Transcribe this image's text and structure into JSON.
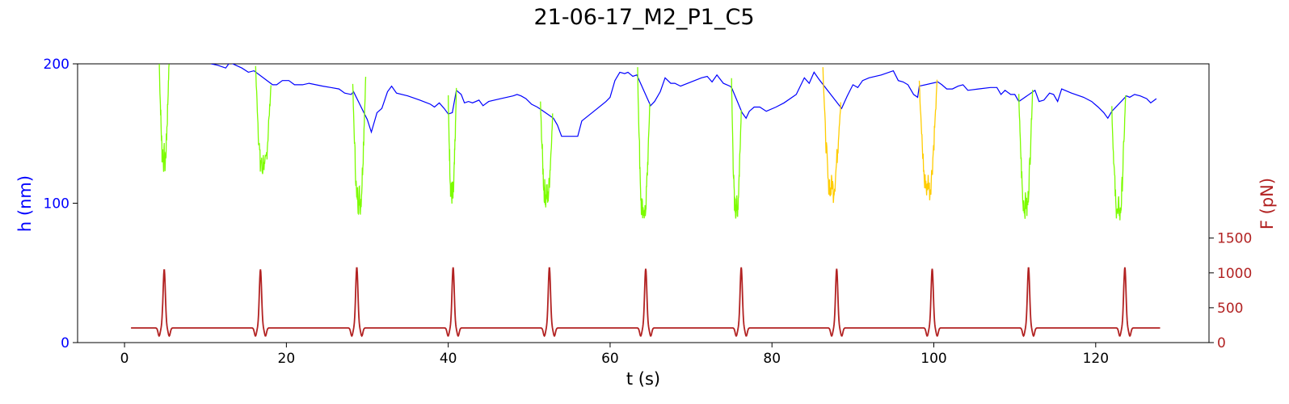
{
  "chart_data": {
    "type": "line",
    "title": "21-06-17_M2_P1_C5",
    "xlabel": "t (s)",
    "ylabel_left": "h (nm)",
    "ylabel_right": "F (pN)",
    "xlim": [
      -5.8,
      134
    ],
    "ylim_left": [
      0,
      200
    ],
    "ylim_right": [
      0,
      4000
    ],
    "x_ticks": [
      0,
      20,
      40,
      60,
      80,
      100,
      120
    ],
    "y_left_ticks": [
      0,
      100,
      200
    ],
    "y_right_ticks": [
      0,
      500,
      1000,
      1500
    ],
    "grid": false,
    "colors": {
      "h_baseline": "#0000ff",
      "h_dip_green": "#7cfc00",
      "h_dip_gold": "#ffcc00",
      "force": "#b22222",
      "left_axis": "#0000ff",
      "right_axis": "#b22222"
    },
    "h_baseline": [
      [
        10.7,
        200
      ],
      [
        11.5,
        199
      ],
      [
        12.5,
        197
      ],
      [
        13.0,
        201
      ],
      [
        14.5,
        197
      ],
      [
        15.3,
        194
      ],
      [
        16.0,
        195
      ],
      [
        18.3,
        185
      ],
      [
        18.8,
        185
      ],
      [
        19.5,
        188
      ],
      [
        20.3,
        188
      ],
      [
        21.0,
        185
      ],
      [
        22.0,
        185
      ],
      [
        22.8,
        186
      ],
      [
        24.5,
        184
      ],
      [
        25.5,
        183
      ],
      [
        26.5,
        182
      ],
      [
        27.2,
        179
      ],
      [
        28.0,
        178
      ],
      [
        28.3,
        180
      ],
      [
        30.0,
        160
      ],
      [
        30.5,
        151
      ],
      [
        31.2,
        165
      ],
      [
        31.8,
        168
      ],
      [
        32.5,
        180
      ],
      [
        33.0,
        184
      ],
      [
        33.6,
        179
      ],
      [
        35.0,
        177
      ],
      [
        36.5,
        174
      ],
      [
        37.8,
        171
      ],
      [
        38.3,
        169
      ],
      [
        38.9,
        172
      ],
      [
        39.5,
        168
      ],
      [
        40.0,
        164
      ],
      [
        40.5,
        165
      ],
      [
        41.0,
        181
      ],
      [
        41.6,
        178
      ],
      [
        42.0,
        172
      ],
      [
        42.5,
        173
      ],
      [
        43.0,
        172
      ],
      [
        43.8,
        174
      ],
      [
        44.3,
        170
      ],
      [
        45.0,
        173
      ],
      [
        46.5,
        175
      ],
      [
        48.0,
        177
      ],
      [
        48.5,
        178
      ],
      [
        49.0,
        177
      ],
      [
        49.6,
        175
      ],
      [
        50.3,
        171
      ],
      [
        51.0,
        169
      ],
      [
        51.5,
        167
      ],
      [
        53.0,
        161
      ],
      [
        53.5,
        156
      ],
      [
        54.0,
        148
      ],
      [
        55.0,
        148
      ],
      [
        56.0,
        148
      ],
      [
        56.5,
        159
      ],
      [
        58.0,
        166
      ],
      [
        59.5,
        173
      ],
      [
        60.0,
        176
      ],
      [
        60.6,
        188
      ],
      [
        61.2,
        194
      ],
      [
        61.8,
        193
      ],
      [
        62.2,
        194
      ],
      [
        62.8,
        191
      ],
      [
        63.3,
        192
      ],
      [
        65.0,
        170
      ],
      [
        65.5,
        173
      ],
      [
        66.2,
        180
      ],
      [
        66.8,
        190
      ],
      [
        67.5,
        186
      ],
      [
        68.0,
        186
      ],
      [
        68.7,
        184
      ],
      [
        70.0,
        187
      ],
      [
        71.3,
        190
      ],
      [
        72.0,
        191
      ],
      [
        72.6,
        187
      ],
      [
        73.2,
        192
      ],
      [
        74.0,
        186
      ],
      [
        74.8,
        184
      ],
      [
        75.0,
        183
      ],
      [
        76.3,
        165
      ],
      [
        76.8,
        161
      ],
      [
        77.2,
        166
      ],
      [
        77.8,
        169
      ],
      [
        78.5,
        169
      ],
      [
        79.3,
        166
      ],
      [
        80.5,
        169
      ],
      [
        81.5,
        172
      ],
      [
        83.0,
        178
      ],
      [
        84.0,
        190
      ],
      [
        84.6,
        186
      ],
      [
        85.2,
        194
      ],
      [
        85.8,
        189
      ],
      [
        88.6,
        168
      ],
      [
        89.3,
        177
      ],
      [
        90.0,
        185
      ],
      [
        90.6,
        183
      ],
      [
        91.2,
        188
      ],
      [
        92.0,
        190
      ],
      [
        93.5,
        192
      ],
      [
        95.0,
        195
      ],
      [
        95.6,
        188
      ],
      [
        96.2,
        187
      ],
      [
        96.8,
        185
      ],
      [
        97.5,
        178
      ],
      [
        98.0,
        176
      ],
      [
        98.2,
        184
      ],
      [
        100.5,
        187
      ],
      [
        101.0,
        185
      ],
      [
        101.6,
        182
      ],
      [
        102.3,
        182
      ],
      [
        103.0,
        184
      ],
      [
        103.6,
        185
      ],
      [
        104.2,
        181
      ],
      [
        105.5,
        182
      ],
      [
        107.0,
        183
      ],
      [
        107.8,
        183
      ],
      [
        108.3,
        178
      ],
      [
        108.8,
        181
      ],
      [
        109.5,
        178
      ],
      [
        110.0,
        178
      ],
      [
        110.5,
        173
      ],
      [
        112.5,
        181
      ],
      [
        113.0,
        173
      ],
      [
        113.6,
        174
      ],
      [
        114.3,
        179
      ],
      [
        114.8,
        178
      ],
      [
        115.3,
        173
      ],
      [
        115.8,
        182
      ],
      [
        117.0,
        179
      ],
      [
        118.5,
        176
      ],
      [
        119.5,
        173
      ],
      [
        120.3,
        169
      ],
      [
        121.0,
        165
      ],
      [
        121.5,
        161
      ],
      [
        122.0,
        166
      ],
      [
        123.8,
        177
      ],
      [
        124.2,
        176
      ],
      [
        124.8,
        178
      ],
      [
        125.5,
        177
      ],
      [
        126.3,
        175
      ],
      [
        126.8,
        172
      ],
      [
        127.5,
        175
      ]
    ],
    "h_dips": [
      {
        "t0": 4.3,
        "t1": 5.5,
        "min": 127,
        "color": "green",
        "top": 200,
        "end": 200
      },
      {
        "t0": 16.2,
        "t1": 18.1,
        "min": 122,
        "color": "green",
        "top": 200,
        "end": 185
      },
      {
        "t0": 28.2,
        "t1": 29.8,
        "min": 98,
        "color": "green",
        "top": 188,
        "end": 191
      },
      {
        "t0": 40.0,
        "t1": 41.0,
        "min": 103,
        "color": "green",
        "top": 176,
        "end": 181
      },
      {
        "t0": 51.4,
        "t1": 52.9,
        "min": 101,
        "color": "green",
        "top": 173,
        "end": 162
      },
      {
        "t0": 63.4,
        "t1": 64.9,
        "min": 89,
        "color": "green",
        "top": 200,
        "end": 171
      },
      {
        "t0": 75.0,
        "t1": 76.2,
        "min": 92,
        "color": "green",
        "top": 192,
        "end": 166
      },
      {
        "t0": 86.3,
        "t1": 88.5,
        "min": 107,
        "color": "gold",
        "top": 200,
        "end": 173
      },
      {
        "t0": 98.2,
        "t1": 100.4,
        "min": 108,
        "color": "gold",
        "top": 189,
        "end": 186
      },
      {
        "t0": 110.5,
        "t1": 112.2,
        "min": 94,
        "color": "green",
        "top": 180,
        "end": 181
      },
      {
        "t0": 122.0,
        "t1": 123.7,
        "min": 90,
        "color": "green",
        "top": 169,
        "end": 177
      }
    ],
    "force": {
      "t_start": 0.8,
      "t_end": 128.0,
      "baseline_pN": 210,
      "dip_pN": 95,
      "peak_times": [
        4.9,
        16.8,
        28.7,
        40.6,
        52.5,
        64.4,
        76.2,
        88.0,
        99.8,
        111.7,
        123.6
      ],
      "peak_pN": [
        1050,
        1050,
        1080,
        1080,
        1080,
        1060,
        1080,
        1060,
        1060,
        1080,
        1080
      ]
    }
  }
}
